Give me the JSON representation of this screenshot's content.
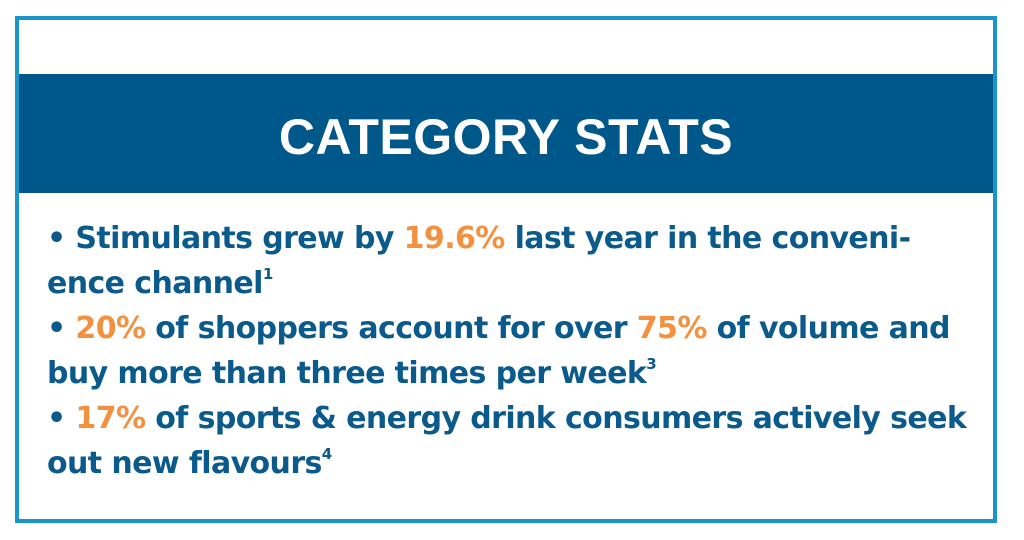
{
  "header": {
    "title": "CATEGORY STATS"
  },
  "stats": [
    {
      "bullet": "• ",
      "part1": "Stimulants grew by ",
      "highlight1": "19.6%",
      "part2": " last year in the conveni- ence channel",
      "footnote": "1"
    },
    {
      "bullet": "• ",
      "highlight1": "20%",
      "part1": " of shoppers account for over ",
      "highlight2": "75%",
      "part2": " of volume and buy more than three times per week",
      "footnote": "3"
    },
    {
      "bullet": "• ",
      "highlight1": "17%",
      "part1": " of sports & energy drink consumers actively seek out new flavours",
      "footnote": "4"
    }
  ]
}
